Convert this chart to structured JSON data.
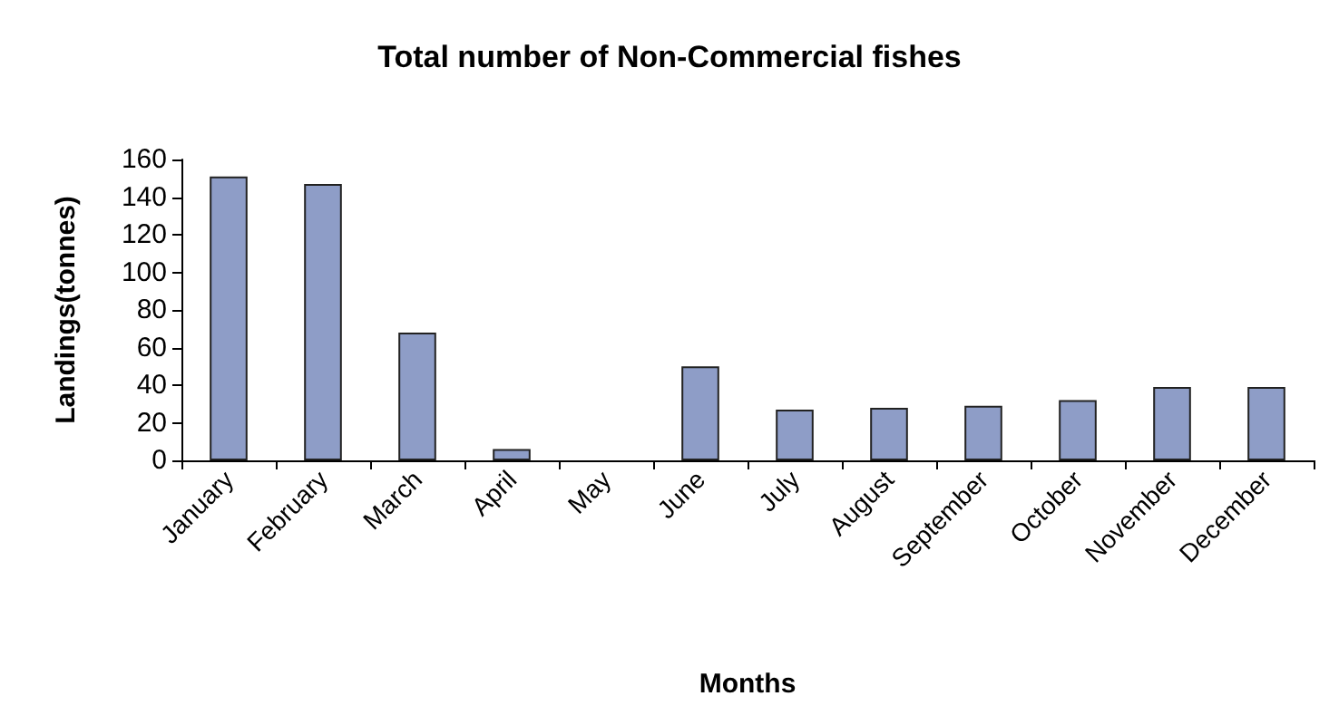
{
  "chart_data": {
    "type": "bar",
    "title": "Total number of Non-Commercial fishes",
    "xlabel": "Months",
    "ylabel": "Landings(tonnes)",
    "categories": [
      "January",
      "February",
      "March",
      "April",
      "May",
      "June",
      "July",
      "August",
      "September",
      "October",
      "November",
      "December"
    ],
    "values": [
      151,
      147,
      68,
      6,
      0,
      50,
      27,
      28,
      29,
      32,
      39,
      39
    ],
    "color": "#8e9dc7",
    "ylim": [
      0,
      160
    ],
    "yticks": [
      0,
      20,
      40,
      60,
      80,
      100,
      120,
      140,
      160
    ],
    "grid": false
  }
}
